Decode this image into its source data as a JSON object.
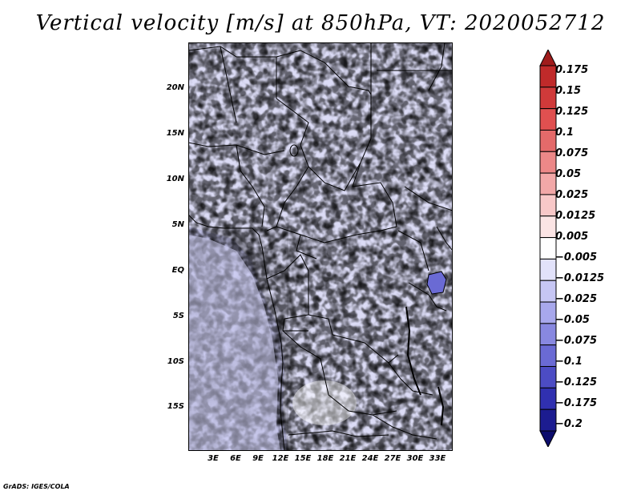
{
  "title": "Vertical velocity [m/s] at 850hPa, VT: 2020052712",
  "map": {
    "variable": "Vertical velocity",
    "units": "m/s",
    "level": "850hPa",
    "valid_time": "2020052712",
    "lat_labels": [
      "20N",
      "15N",
      "10N",
      "5N",
      "EQ",
      "5S",
      "10S",
      "15S"
    ],
    "lon_labels": [
      "3E",
      "6E",
      "9E",
      "12E",
      "15E",
      "18E",
      "21E",
      "24E",
      "27E",
      "30E",
      "33E"
    ]
  },
  "colorbar": {
    "labels": [
      "0.175",
      "0.15",
      "0.125",
      "0.1",
      "0.075",
      "0.05",
      "0.025",
      "0.0125",
      "0.005",
      "−0.005",
      "−0.0125",
      "−0.025",
      "−0.05",
      "−0.075",
      "−0.1",
      "−0.125",
      "−0.175",
      "−0.2"
    ],
    "colors": [
      "#a01c1c",
      "#c02a2a",
      "#d03a3a",
      "#e05050",
      "#e46a6a",
      "#ec8888",
      "#f2a8a8",
      "#f8c8c8",
      "#fbe4e4",
      "#ffffff",
      "#e2e2fa",
      "#c6c6f4",
      "#a8a8ec",
      "#8888e0",
      "#6a6ad4",
      "#4c4cc4",
      "#3030b0",
      "#1c1c90",
      "#0c0c6c"
    ]
  },
  "footer": "GrADS: IGES/COLA"
}
